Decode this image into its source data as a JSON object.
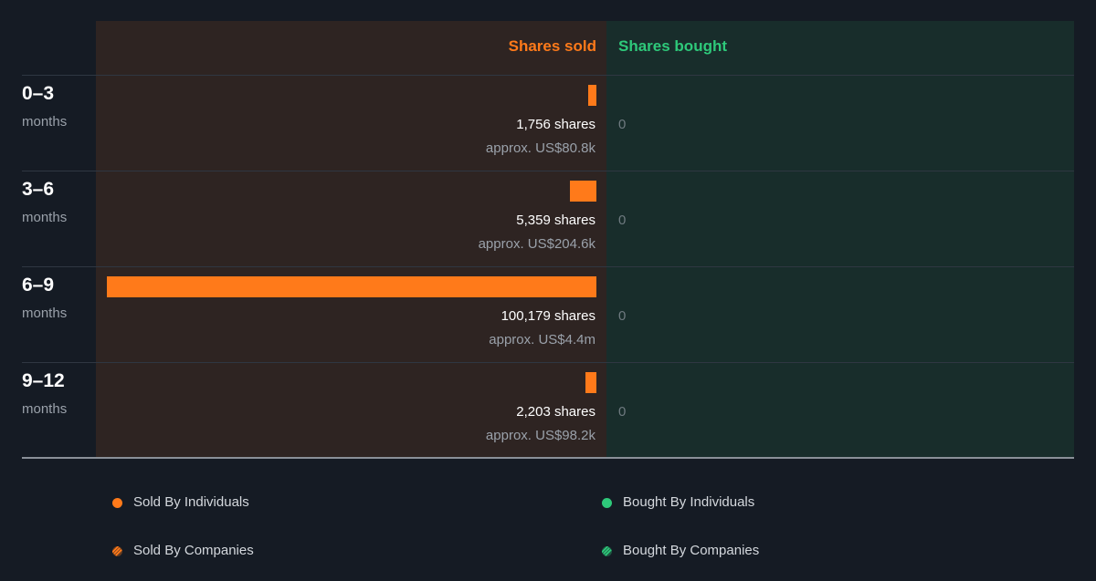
{
  "colors": {
    "sold": "#ff7a1a",
    "bought": "#2ec97a",
    "sold_header": "#ff7a1a",
    "bought_header": "#2ec97a"
  },
  "header": {
    "sold_label": "Shares sold",
    "bought_label": "Shares bought"
  },
  "chart_data": {
    "type": "bar",
    "orientation": "horizontal-diverging",
    "categories": [
      "0–3 months",
      "3–6 months",
      "6–9 months",
      "9–12 months"
    ],
    "series": [
      {
        "name": "Shares sold",
        "values": [
          1756,
          5359,
          100179,
          2203
        ],
        "value_labels": [
          "1,756 shares",
          "5,359 shares",
          "100,179 shares",
          "2,203 shares"
        ],
        "approx_labels": [
          "approx. US$80.8k",
          "approx. US$204.6k",
          "approx. US$4.4m",
          "approx. US$98.2k"
        ]
      },
      {
        "name": "Shares bought",
        "values": [
          0,
          0,
          0,
          0
        ],
        "value_labels": [
          "0",
          "0",
          "0",
          "0"
        ]
      }
    ],
    "rows": [
      {
        "period": "0–3",
        "unit": "months"
      },
      {
        "period": "3–6",
        "unit": "months"
      },
      {
        "period": "6–9",
        "unit": "months"
      },
      {
        "period": "9–12",
        "unit": "months"
      }
    ],
    "legend": [
      {
        "label": "Sold By Individuals",
        "icon": "dot",
        "color": "#ff7a1a"
      },
      {
        "label": "Bought By Individuals",
        "icon": "dot",
        "color": "#2ec97a"
      },
      {
        "label": "Sold By Companies",
        "icon": "stripes",
        "color": "#ff7a1a"
      },
      {
        "label": "Bought By Companies",
        "icon": "stripes",
        "color": "#2ec97a"
      }
    ],
    "legend_placement": "bottom"
  }
}
